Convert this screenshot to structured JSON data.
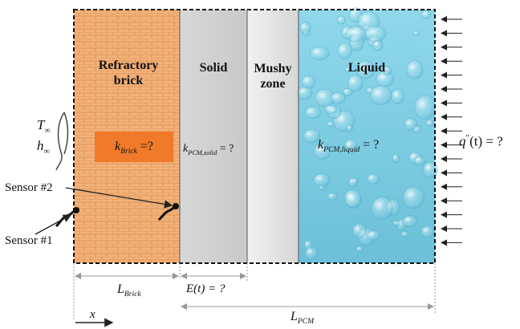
{
  "regions": {
    "brick": {
      "label_line1": "Refractory",
      "label_line2": "brick",
      "color": "#f1b27a"
    },
    "solid": {
      "label": "Solid",
      "color": "#d3d3d3"
    },
    "mushy": {
      "label_line1": "Mushy",
      "label_line2": "zone",
      "color": "#e8e8e8"
    },
    "liquid": {
      "label": "Liquid",
      "color": "#8fd3e6"
    }
  },
  "conductivity": {
    "brick": {
      "symbol": "k",
      "subscript": "Brick",
      "suffix": " =?",
      "box_color": "#f07a2a"
    },
    "solid": {
      "symbol": "k",
      "subscript": "PCM,solid",
      "suffix": " = ?"
    },
    "liquid": {
      "symbol": "k",
      "subscript": "PCM,liquid",
      "suffix": " = ?"
    }
  },
  "ambient": {
    "temperature": {
      "symbol": "T",
      "subscript": "∞"
    },
    "h": {
      "symbol": "h",
      "subscript": "∞"
    }
  },
  "flux": {
    "symbol": "q",
    "prime": "″",
    "suffix": "(t) = ?"
  },
  "sensors": {
    "s1": "Sensor #1",
    "s2": "Sensor #2"
  },
  "dimensions": {
    "brick": {
      "symbol": "L",
      "subscript": "Brick"
    },
    "front": {
      "text": "E(t) = ?"
    },
    "pcm": {
      "symbol": "L",
      "subscript": "PCM"
    },
    "x_axis": "x"
  }
}
